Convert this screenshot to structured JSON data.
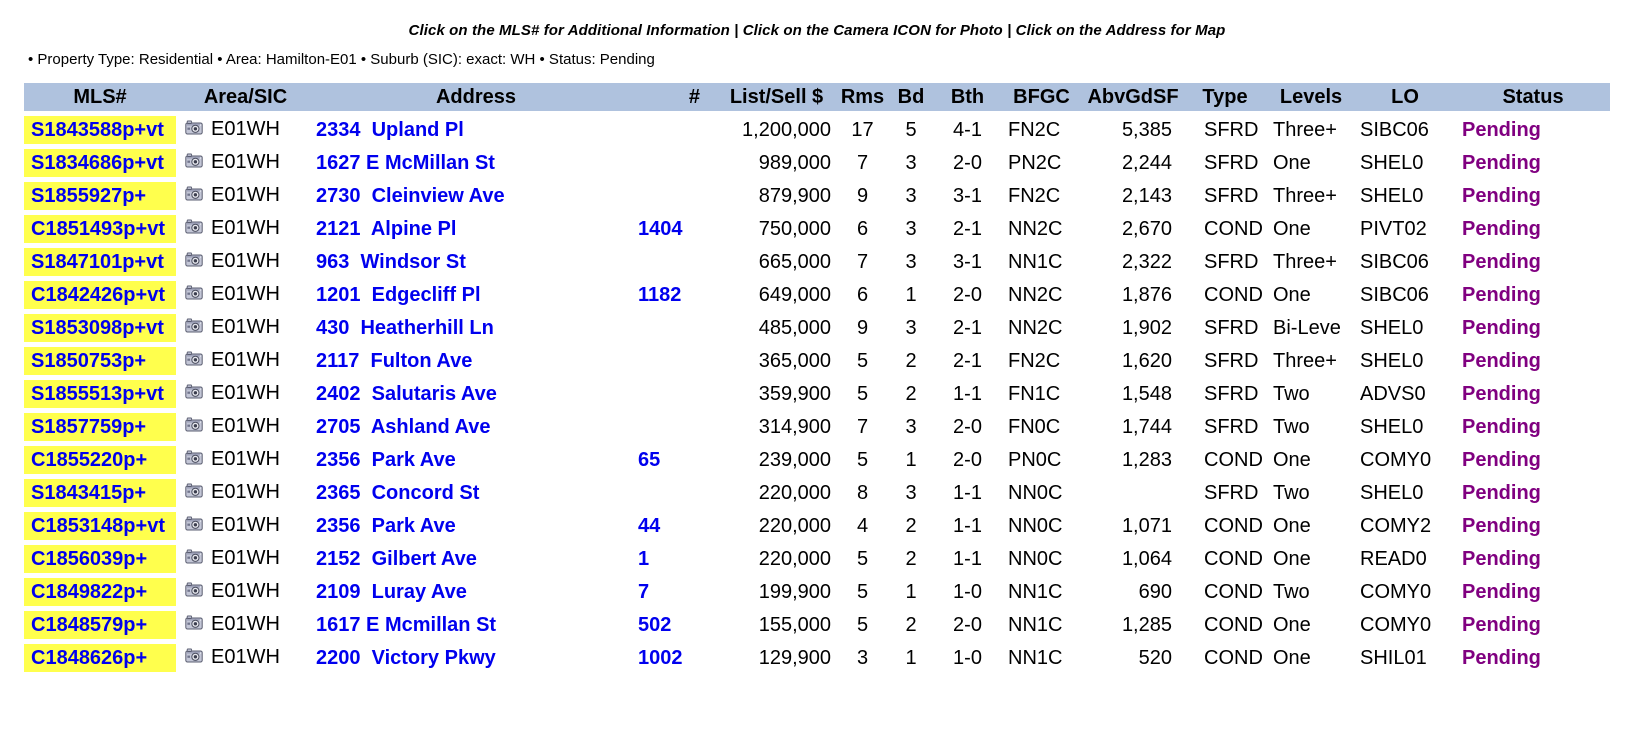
{
  "instructions": "Click on the MLS# for Additional Information | Click on the Camera ICON for Photo | Click on the Address for Map",
  "criteria": "• Property Type: Residential • Area: Hamilton-E01 • Suburb (SIC): exact: WH • Status: Pending",
  "colors": {
    "header_bg": "#AFC2DE",
    "mls_highlight": "#FFFF4D",
    "link_blue": "#0000EE",
    "status_purple": "#800080"
  },
  "icons": {
    "camera": "camera-icon"
  },
  "table": {
    "headers": [
      "MLS#",
      "Area/SIC",
      "Address",
      "#",
      "List/Sell $",
      "Rms",
      "Bd",
      "Bth",
      "BFGC",
      "AbvGdSF",
      "Type",
      "Levels",
      "LO",
      "Status"
    ],
    "rows": [
      {
        "mls": "S1843588p+vt",
        "area": "E01WH",
        "address": "2334  Upland Pl",
        "unit": "",
        "price": "1,200,000",
        "rms": "17",
        "bd": "5",
        "bth": "4-1",
        "bfgc": "FN2C",
        "sf": "5,385",
        "type": "SFRD",
        "levels": "Three+",
        "lo": "SIBC06",
        "status": "Pending"
      },
      {
        "mls": "S1834686p+vt",
        "area": "E01WH",
        "address": "1627 E McMillan St",
        "unit": "",
        "price": "989,000",
        "rms": "7",
        "bd": "3",
        "bth": "2-0",
        "bfgc": "PN2C",
        "sf": "2,244",
        "type": "SFRD",
        "levels": "One",
        "lo": "SHEL0",
        "status": "Pending"
      },
      {
        "mls": "S1855927p+",
        "area": "E01WH",
        "address": "2730  Cleinview Ave",
        "unit": "",
        "price": "879,900",
        "rms": "9",
        "bd": "3",
        "bth": "3-1",
        "bfgc": "FN2C",
        "sf": "2,143",
        "type": "SFRD",
        "levels": "Three+",
        "lo": "SHEL0",
        "status": "Pending"
      },
      {
        "mls": "C1851493p+vt",
        "area": "E01WH",
        "address": "2121  Alpine Pl",
        "unit": "1404",
        "price": "750,000",
        "rms": "6",
        "bd": "3",
        "bth": "2-1",
        "bfgc": "NN2C",
        "sf": "2,670",
        "type": "COND",
        "levels": "One",
        "lo": "PIVT02",
        "status": "Pending"
      },
      {
        "mls": "S1847101p+vt",
        "area": "E01WH",
        "address": "963  Windsor St",
        "unit": "",
        "price": "665,000",
        "rms": "7",
        "bd": "3",
        "bth": "3-1",
        "bfgc": "NN1C",
        "sf": "2,322",
        "type": "SFRD",
        "levels": "Three+",
        "lo": "SIBC06",
        "status": "Pending"
      },
      {
        "mls": "C1842426p+vt",
        "area": "E01WH",
        "address": "1201  Edgecliff Pl",
        "unit": "1182",
        "price": "649,000",
        "rms": "6",
        "bd": "1",
        "bth": "2-0",
        "bfgc": "NN2C",
        "sf": "1,876",
        "type": "COND",
        "levels": "One",
        "lo": "SIBC06",
        "status": "Pending"
      },
      {
        "mls": "S1853098p+vt",
        "area": "E01WH",
        "address": "430  Heatherhill Ln",
        "unit": "",
        "price": "485,000",
        "rms": "9",
        "bd": "3",
        "bth": "2-1",
        "bfgc": "NN2C",
        "sf": "1,902",
        "type": "SFRD",
        "levels": "Bi-Leve",
        "lo": "SHEL0",
        "status": "Pending"
      },
      {
        "mls": "S1850753p+",
        "area": "E01WH",
        "address": "2117  Fulton Ave",
        "unit": "",
        "price": "365,000",
        "rms": "5",
        "bd": "2",
        "bth": "2-1",
        "bfgc": "FN2C",
        "sf": "1,620",
        "type": "SFRD",
        "levels": "Three+",
        "lo": "SHEL0",
        "status": "Pending"
      },
      {
        "mls": "S1855513p+vt",
        "area": "E01WH",
        "address": "2402  Salutaris Ave",
        "unit": "",
        "price": "359,900",
        "rms": "5",
        "bd": "2",
        "bth": "1-1",
        "bfgc": "FN1C",
        "sf": "1,548",
        "type": "SFRD",
        "levels": "Two",
        "lo": "ADVS0",
        "status": "Pending"
      },
      {
        "mls": "S1857759p+",
        "area": "E01WH",
        "address": "2705  Ashland Ave",
        "unit": "",
        "price": "314,900",
        "rms": "7",
        "bd": "3",
        "bth": "2-0",
        "bfgc": "FN0C",
        "sf": "1,744",
        "type": "SFRD",
        "levels": "Two",
        "lo": "SHEL0",
        "status": "Pending"
      },
      {
        "mls": "C1855220p+",
        "area": "E01WH",
        "address": "2356  Park Ave",
        "unit": "65",
        "price": "239,000",
        "rms": "5",
        "bd": "1",
        "bth": "2-0",
        "bfgc": "PN0C",
        "sf": "1,283",
        "type": "COND",
        "levels": "One",
        "lo": "COMY0",
        "status": "Pending"
      },
      {
        "mls": "S1843415p+",
        "area": "E01WH",
        "address": "2365  Concord St",
        "unit": "",
        "price": "220,000",
        "rms": "8",
        "bd": "3",
        "bth": "1-1",
        "bfgc": "NN0C",
        "sf": "",
        "type": "SFRD",
        "levels": "Two",
        "lo": "SHEL0",
        "status": "Pending"
      },
      {
        "mls": "C1853148p+vt",
        "area": "E01WH",
        "address": "2356  Park Ave",
        "unit": "44",
        "price": "220,000",
        "rms": "4",
        "bd": "2",
        "bth": "1-1",
        "bfgc": "NN0C",
        "sf": "1,071",
        "type": "COND",
        "levels": "One",
        "lo": "COMY2",
        "status": "Pending"
      },
      {
        "mls": "C1856039p+",
        "area": "E01WH",
        "address": "2152  Gilbert Ave",
        "unit": "1",
        "price": "220,000",
        "rms": "5",
        "bd": "2",
        "bth": "1-1",
        "bfgc": "NN0C",
        "sf": "1,064",
        "type": "COND",
        "levels": "One",
        "lo": "READ0",
        "status": "Pending"
      },
      {
        "mls": "C1849822p+",
        "area": "E01WH",
        "address": "2109  Luray Ave",
        "unit": "7",
        "price": "199,900",
        "rms": "5",
        "bd": "1",
        "bth": "1-0",
        "bfgc": "NN1C",
        "sf": "690",
        "type": "COND",
        "levels": "Two",
        "lo": "COMY0",
        "status": "Pending"
      },
      {
        "mls": "C1848579p+",
        "area": "E01WH",
        "address": "1617 E Mcmillan St",
        "unit": "502",
        "price": "155,000",
        "rms": "5",
        "bd": "2",
        "bth": "2-0",
        "bfgc": "NN1C",
        "sf": "1,285",
        "type": "COND",
        "levels": "One",
        "lo": "COMY0",
        "status": "Pending"
      },
      {
        "mls": "C1848626p+",
        "area": "E01WH",
        "address": "2200  Victory Pkwy",
        "unit": "1002",
        "price": "129,900",
        "rms": "3",
        "bd": "1",
        "bth": "1-0",
        "bfgc": "NN1C",
        "sf": "520",
        "type": "COND",
        "levels": "One",
        "lo": "SHIL01",
        "status": "Pending"
      }
    ]
  }
}
